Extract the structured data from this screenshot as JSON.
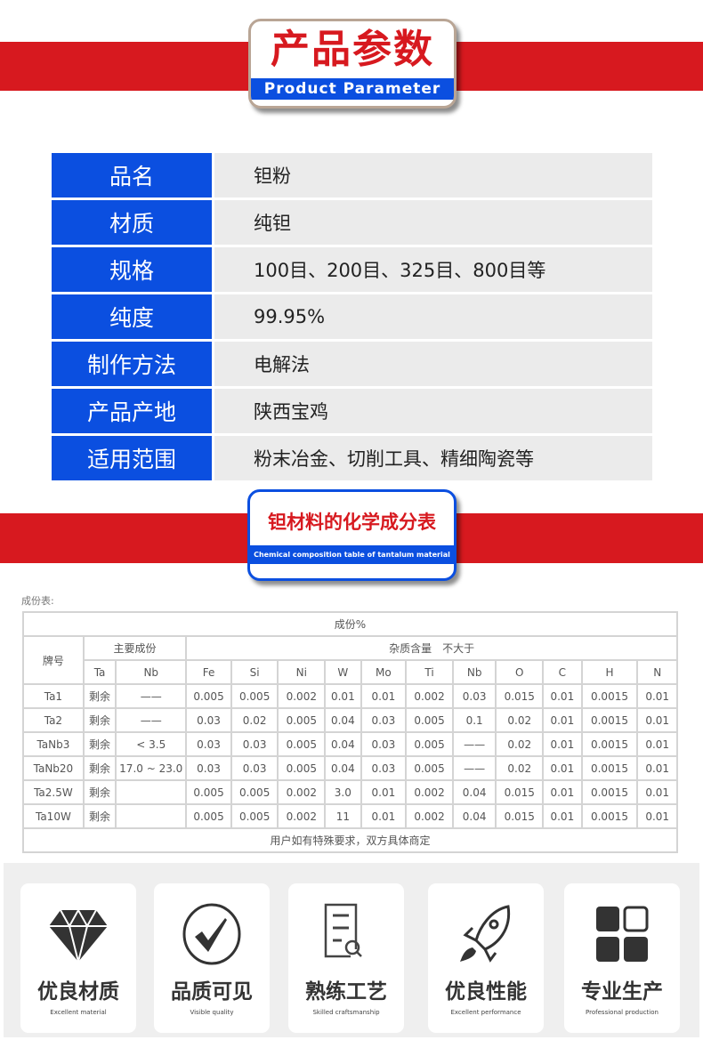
{
  "header1": {
    "title_cn": "产品参数",
    "title_en": "Product Parameter",
    "band_color": "#d7191f",
    "accent": "#0b4fe0"
  },
  "params": [
    {
      "label": "品名",
      "value": "钽粉"
    },
    {
      "label": "材质",
      "value": "纯钽"
    },
    {
      "label": "规格",
      "value": "100目、200目、325目、800目等"
    },
    {
      "label": "纯度",
      "value": "99.95%"
    },
    {
      "label": "制作方法",
      "value": "电解法"
    },
    {
      "label": "产品产地",
      "value": "陕西宝鸡"
    },
    {
      "label": "适用范围",
      "value": "粉末冶金、切削工具、精细陶瓷等"
    }
  ],
  "header2": {
    "title_cn": "钽材料的化学成分表",
    "title_en": "Chemical composition table of tantalum material"
  },
  "composition": {
    "caption": "成份表:",
    "title": "成份%",
    "grade_header": "牌号",
    "main_header": "主要成份",
    "impurity_header": "杂质含量　不大于",
    "columns": [
      "Ta",
      "Nb",
      "Fe",
      "Si",
      "Ni",
      "W",
      "Mo",
      "Ti",
      "Nb",
      "O",
      "C",
      "H",
      "N"
    ],
    "rows": [
      [
        "Ta1",
        "剩余",
        "——",
        "0.005",
        "0.005",
        "0.002",
        "0.01",
        "0.01",
        "0.002",
        "0.03",
        "0.015",
        "0.01",
        "0.0015",
        "0.01"
      ],
      [
        "Ta2",
        "剩余",
        "——",
        "0.03",
        "0.02",
        "0.005",
        "0.04",
        "0.03",
        "0.005",
        "0.1",
        "0.02",
        "0.01",
        "0.0015",
        "0.01"
      ],
      [
        "TaNb3",
        "剩余",
        "< 3.5",
        "0.03",
        "0.03",
        "0.005",
        "0.04",
        "0.03",
        "0.005",
        "——",
        "0.02",
        "0.01",
        "0.0015",
        "0.01"
      ],
      [
        "TaNb20",
        "剩余",
        "17.0 ~ 23.0",
        "0.03",
        "0.03",
        "0.005",
        "0.04",
        "0.03",
        "0.005",
        "——",
        "0.02",
        "0.01",
        "0.0015",
        "0.01"
      ],
      [
        "Ta2.5W",
        "剩余",
        "",
        "0.005",
        "0.005",
        "0.002",
        "3.0",
        "0.01",
        "0.002",
        "0.04",
        "0.015",
        "0.01",
        "0.0015",
        "0.01"
      ],
      [
        "Ta10W",
        "剩余",
        "",
        "0.005",
        "0.005",
        "0.002",
        "11",
        "0.01",
        "0.002",
        "0.04",
        "0.015",
        "0.01",
        "0.0015",
        "0.01"
      ]
    ],
    "footer": "用户如有特殊要求，双方具体商定"
  },
  "features": [
    {
      "icon": "diamond-icon",
      "title": "优良材质",
      "subtitle": "Excellent material"
    },
    {
      "icon": "checkmark-circle-icon",
      "title": "品质可见",
      "subtitle": "Visible quality"
    },
    {
      "icon": "document-magnifier-icon",
      "title": "熟练工艺",
      "subtitle": "Skilled craftsmanship"
    },
    {
      "icon": "rocket-icon",
      "title": "优良性能",
      "subtitle": "Excellent performance"
    },
    {
      "icon": "grid-blocks-icon",
      "title": "专业生产",
      "subtitle": "Professional production"
    }
  ]
}
